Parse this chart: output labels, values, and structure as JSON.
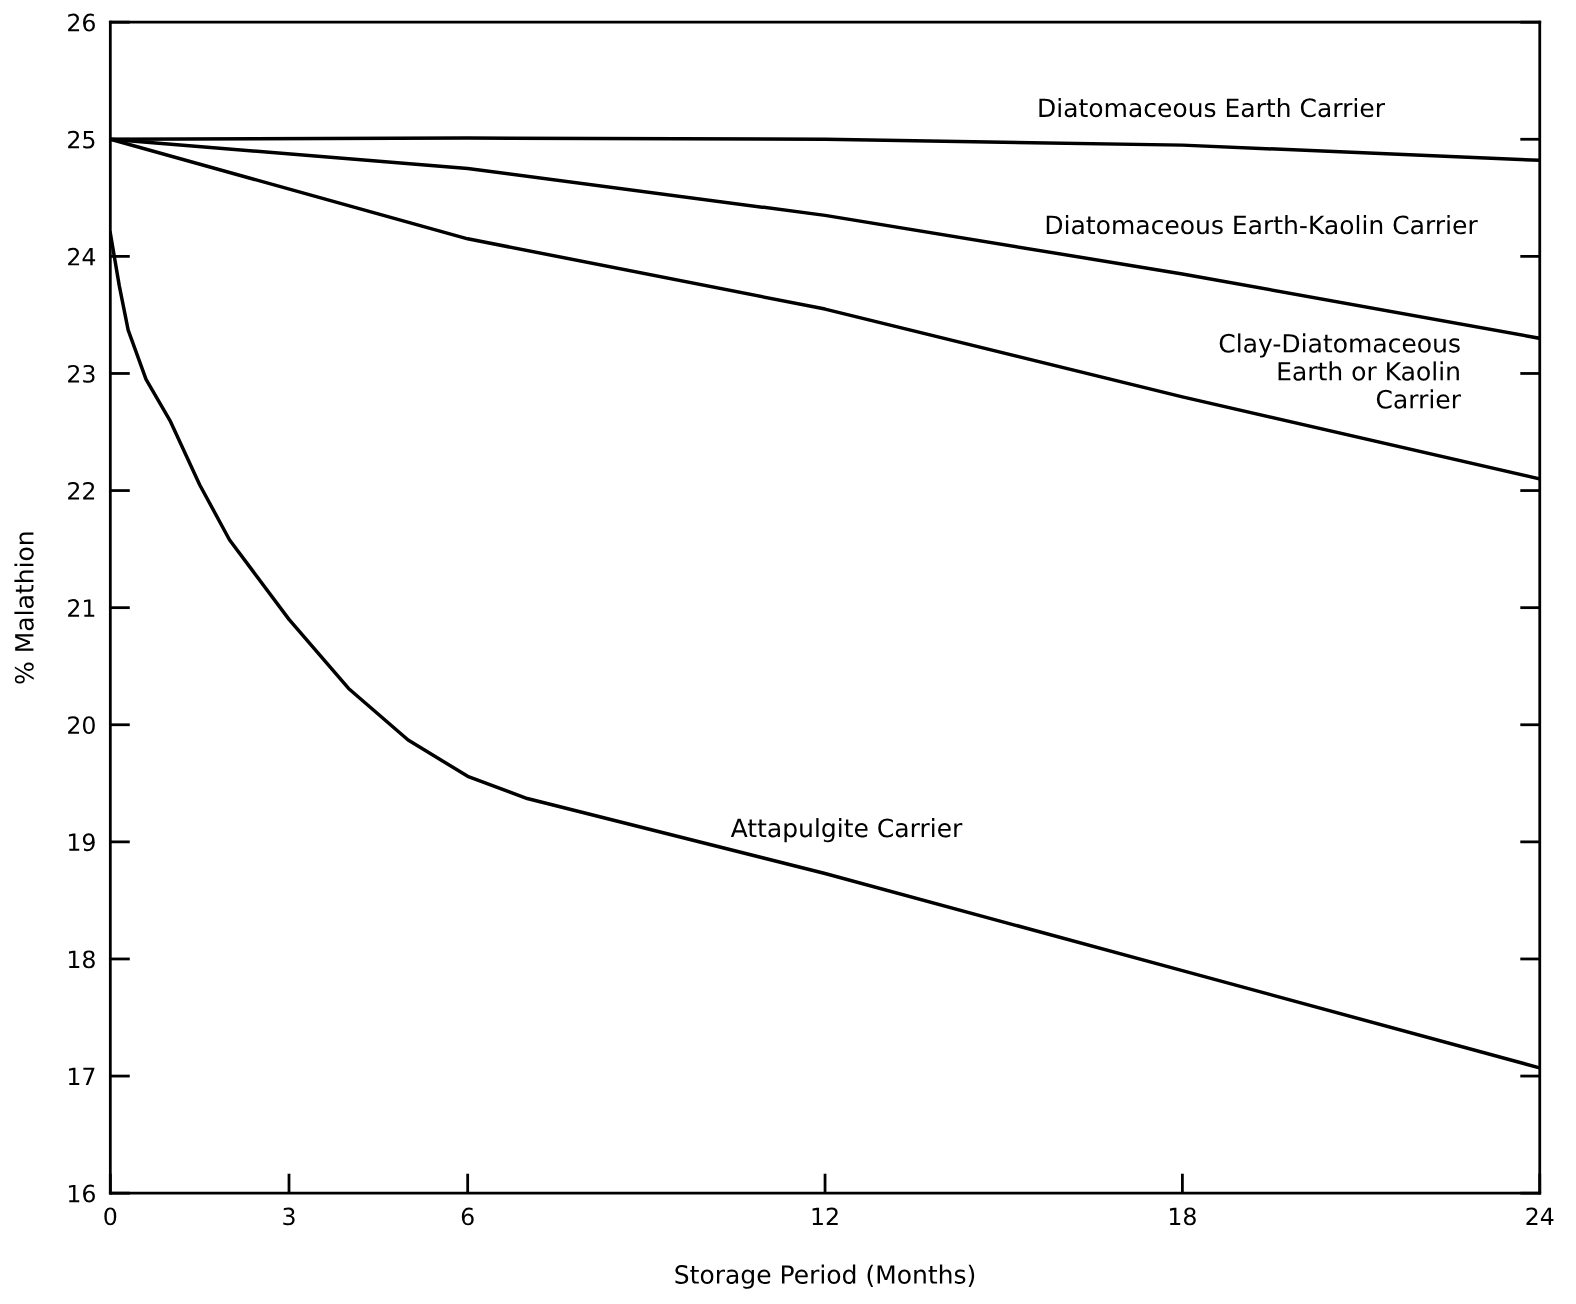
{
  "chart_data": {
    "type": "line",
    "xlabel": "Storage Period (Months)",
    "ylabel": "% Malathion",
    "xlim": [
      0,
      24
    ],
    "ylim": [
      16,
      26
    ],
    "xticks": [
      0,
      3,
      6,
      12,
      18,
      24
    ],
    "yticks": [
      16,
      17,
      18,
      19,
      20,
      21,
      22,
      23,
      24,
      25,
      26
    ],
    "grid": false,
    "marker": "none",
    "line_style": "solid",
    "series": [
      {
        "name": "Diatomaceous Earth Carrier",
        "color": "#000000",
        "x": [
          0,
          6,
          12,
          18,
          24
        ],
        "values": [
          25,
          25.01,
          25.0,
          24.95,
          24.82
        ]
      },
      {
        "name": "Diatomaceous Earth-Kaolin Carrier",
        "color": "#000000",
        "x": [
          0,
          6,
          12,
          18,
          24
        ],
        "values": [
          25,
          24.75,
          24.35,
          23.85,
          23.3
        ]
      },
      {
        "name": "Clay-Diatomaceous\nEarth or Kaolin\nCarrier",
        "color": "#000000",
        "x": [
          0,
          6,
          12,
          18,
          24
        ],
        "values": [
          25,
          24.15,
          23.55,
          22.8,
          22.1
        ]
      },
      {
        "name": "Attapulgite Carrier",
        "color": "#000000",
        "x": [
          0,
          0.15,
          0.3,
          0.6,
          1,
          1.5,
          2,
          3,
          4,
          5,
          6,
          7,
          12,
          18,
          24
        ],
        "values": [
          24.2,
          23.75,
          23.37,
          22.95,
          22.6,
          22.05,
          21.58,
          20.9,
          20.31,
          19.87,
          19.56,
          19.37,
          18.73,
          17.9,
          17.07
        ]
      }
    ]
  }
}
